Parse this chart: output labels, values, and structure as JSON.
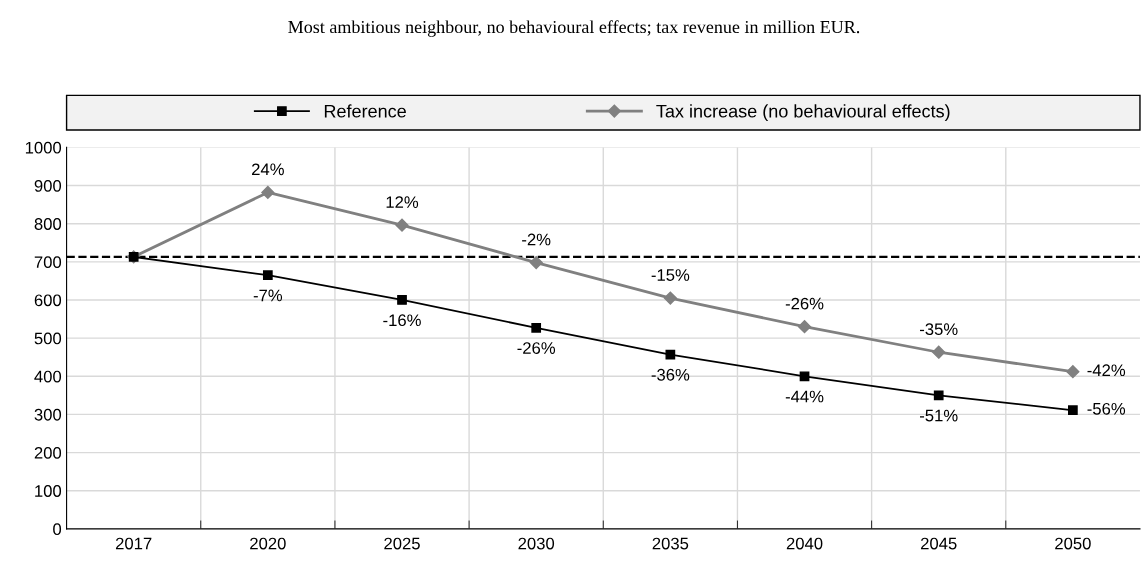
{
  "chart_data": {
    "type": "line",
    "title": "Most ambitious neighbour, no behavioural effects; tax revenue in million EUR.",
    "categories": [
      "2017",
      "2020",
      "2025",
      "2030",
      "2035",
      "2040",
      "2045",
      "2050"
    ],
    "series": [
      {
        "name": "Reference",
        "color": "#000000",
        "marker": "square",
        "values": [
          713,
          665,
          600,
          527,
          457,
          400,
          350,
          311
        ]
      },
      {
        "name": "Tax increase (no behavioural effects)",
        "color": "#808080",
        "marker": "diamond",
        "values": [
          713,
          882,
          796,
          698,
          605,
          530,
          463,
          412
        ]
      }
    ],
    "annotations": [
      {
        "text": "-7%",
        "x": "2020",
        "y": 665
      },
      {
        "text": "-16%",
        "x": "2025",
        "y": 600
      },
      {
        "text": "-26%",
        "x": "2030",
        "y": 527
      },
      {
        "text": "-36%",
        "x": "2035",
        "y": 457
      },
      {
        "text": "-44%",
        "x": "2040",
        "y": 400
      },
      {
        "text": "-51%",
        "x": "2045",
        "y": 350
      },
      {
        "text": "-56%",
        "x": "2050",
        "y": 311
      },
      {
        "text": "24%",
        "x": "2020",
        "y": 882
      },
      {
        "text": "12%",
        "x": "2025",
        "y": 796
      },
      {
        "text": "-2%",
        "x": "2030",
        "y": 698
      },
      {
        "text": "-15%",
        "x": "2035",
        "y": 605
      },
      {
        "text": "-26%",
        "x": "2040",
        "y": 530
      },
      {
        "text": "-35%",
        "x": "2045",
        "y": 463
      },
      {
        "text": "-42%",
        "x": "2050",
        "y": 412
      }
    ],
    "ylim": [
      0,
      1000
    ],
    "yticks": [
      0,
      100,
      200,
      300,
      400,
      500,
      600,
      700,
      800,
      900,
      1000
    ],
    "ref_lines": [
      {
        "axis": "y",
        "value": 713,
        "color": "#000000",
        "line_style": "dashed"
      }
    ],
    "grid": true,
    "legend": "top",
    "line_style": "solid"
  }
}
